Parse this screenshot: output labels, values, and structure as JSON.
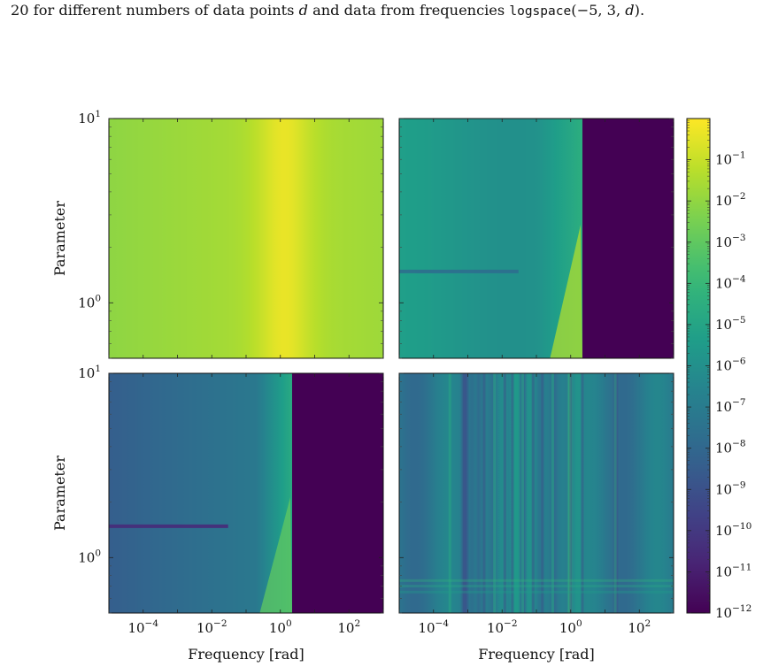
{
  "caption": {
    "pre": "20 for different numbers of data points ",
    "var": "d",
    "mid": " and data from frequencies ",
    "code": "logspace",
    "args_open": "(−5, 3, ",
    "args_var": "d",
    "args_close": ")."
  },
  "colors": {
    "viridis": [
      "#440154",
      "#482878",
      "#3e4989",
      "#31688e",
      "#26828e",
      "#1f9e89",
      "#35b779",
      "#6ece58",
      "#b5de2b",
      "#fde725"
    ]
  },
  "chart_data": {
    "type": "heatmap",
    "layout": "2x2 grid sharing one colorbar on the right",
    "colormap": "viridis",
    "color_scale": "log",
    "colorbar": {
      "range": [
        1e-12,
        1
      ],
      "ticks": [
        {
          "base": "10",
          "exp": "−1",
          "value": 0.1
        },
        {
          "base": "10",
          "exp": "−2",
          "value": 0.01
        },
        {
          "base": "10",
          "exp": "−3",
          "value": 0.001
        },
        {
          "base": "10",
          "exp": "−4",
          "value": 0.0001
        },
        {
          "base": "10",
          "exp": "−5",
          "value": 1e-05
        },
        {
          "base": "10",
          "exp": "−6",
          "value": 1e-06
        },
        {
          "base": "10",
          "exp": "−7",
          "value": 1e-07
        },
        {
          "base": "10",
          "exp": "−8",
          "value": 1e-08
        },
        {
          "base": "10",
          "exp": "−9",
          "value": 1e-09
        },
        {
          "base": "10",
          "exp": "−10",
          "value": 1e-10
        },
        {
          "base": "10",
          "exp": "−11",
          "value": 1e-11
        },
        {
          "base": "10",
          "exp": "−12",
          "value": 1e-12
        }
      ]
    },
    "x_axis": {
      "label": "Frequency [rad]",
      "scale": "log",
      "range": [
        1e-05,
        1000
      ],
      "ticks": [
        {
          "base": "10",
          "exp": "−4",
          "value": 0.0001
        },
        {
          "base": "10",
          "exp": "−2",
          "value": 0.01
        },
        {
          "base": "10",
          "exp": "0",
          "value": 1
        },
        {
          "base": "10",
          "exp": "2",
          "value": 100
        }
      ]
    },
    "y_axis": {
      "label": "Parameter",
      "scale": "log",
      "range": [
        0.5,
        10
      ],
      "ticks": [
        {
          "base": "10",
          "exp": "0",
          "value": 1
        },
        {
          "base": "10",
          "exp": "1",
          "value": 10
        }
      ]
    },
    "panels": [
      {
        "row": 0,
        "col": 0,
        "kind": "smooth",
        "description_level": "high (1e-2 to 1e0), peak near 1 rad"
      },
      {
        "row": 0,
        "col": 1,
        "kind": "cutoff",
        "description_level": "1e-6 to 1e-4 below 2 rad, 1e-12 above"
      },
      {
        "row": 1,
        "col": 0,
        "kind": "cutoff2",
        "description_level": "1e-9 to 1e-4 below 2 rad, 1e-12 above"
      },
      {
        "row": 1,
        "col": 1,
        "kind": "striped",
        "description_level": "1e-8 to 1e-3 with vertical resonance stripes"
      }
    ]
  }
}
